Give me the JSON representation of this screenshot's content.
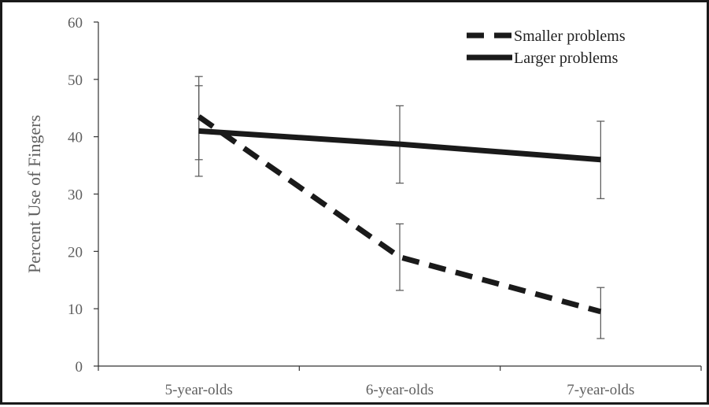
{
  "chart_data": {
    "type": "line",
    "categories": [
      "5-year-olds",
      "6-year-olds",
      "7-year-olds"
    ],
    "ylabel": "Percent Use of Fingers",
    "xlabel": "",
    "ylim": [
      0,
      60
    ],
    "yticks": [
      0,
      10,
      20,
      30,
      40,
      50,
      60
    ],
    "grid": false,
    "legend_position": "top-right",
    "series": [
      {
        "name": "Smaller problems",
        "style": "dashed",
        "color": "#1a1a1a",
        "values": [
          43.5,
          19,
          9.5
        ],
        "error_low": [
          36,
          13.2,
          4.8
        ],
        "error_high": [
          50.5,
          24.8,
          13.7
        ]
      },
      {
        "name": "Larger problems",
        "style": "solid",
        "color": "#1a1a1a",
        "values": [
          41,
          38.7,
          36
        ],
        "error_low": [
          33.1,
          31.9,
          29.2
        ],
        "error_high": [
          48.9,
          45.4,
          42.7
        ]
      }
    ]
  }
}
